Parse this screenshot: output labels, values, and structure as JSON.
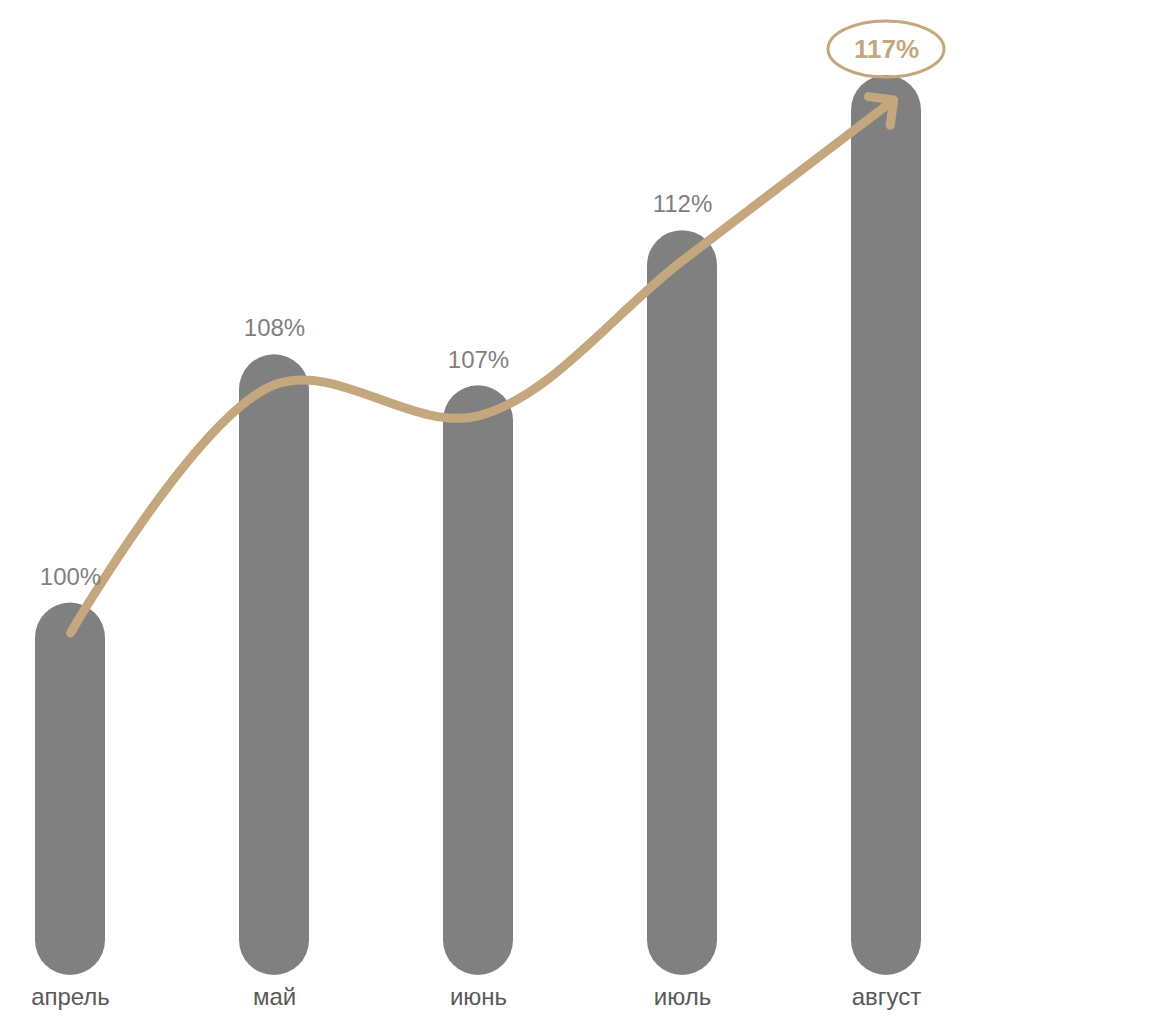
{
  "chart_data": {
    "type": "bar",
    "categories": [
      "апрель",
      "май",
      "июнь",
      "июль",
      "август"
    ],
    "values": [
      100,
      108,
      107,
      112,
      117
    ],
    "value_labels": [
      "100%",
      "108%",
      "107%",
      "112%",
      "117%"
    ],
    "color": "#808080",
    "ylim": [
      88,
      117
    ],
    "data_labels": true,
    "tick_labels": "x"
  }
}
